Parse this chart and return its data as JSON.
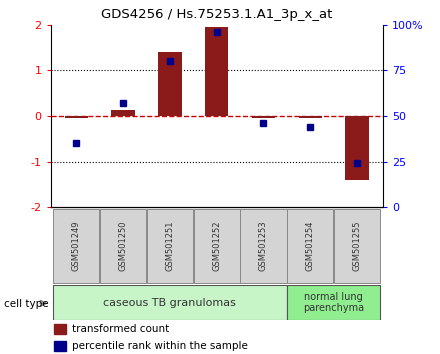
{
  "title": "GDS4256 / Hs.75253.1.A1_3p_x_at",
  "samples": [
    "GSM501249",
    "GSM501250",
    "GSM501251",
    "GSM501252",
    "GSM501253",
    "GSM501254",
    "GSM501255"
  ],
  "transformed_count": [
    -0.05,
    0.13,
    1.4,
    1.95,
    -0.05,
    -0.05,
    -1.4
  ],
  "percentile_rank": [
    35,
    57,
    80,
    96,
    46,
    44,
    24
  ],
  "ylim": [
    -2,
    2
  ],
  "yticks_left": [
    -2,
    -1,
    0,
    1,
    2
  ],
  "yticks_right": [
    0,
    25,
    50,
    75,
    100
  ],
  "bar_color": "#8B1A1A",
  "dot_color": "#00008B",
  "zero_line_color": "#CC0000",
  "grid_line_color": "#000000",
  "group1_label": "caseous TB granulomas",
  "group2_label": "normal lung\nparenchyma",
  "group1_color": "#c8f5c8",
  "group2_color": "#90ee90",
  "cell_type_label": "cell type",
  "legend_bar_label": "transformed count",
  "legend_dot_label": "percentile rank within the sample",
  "bar_width": 0.5,
  "sample_box_color": "#d4d4d4",
  "sample_box_edge": "#888888"
}
